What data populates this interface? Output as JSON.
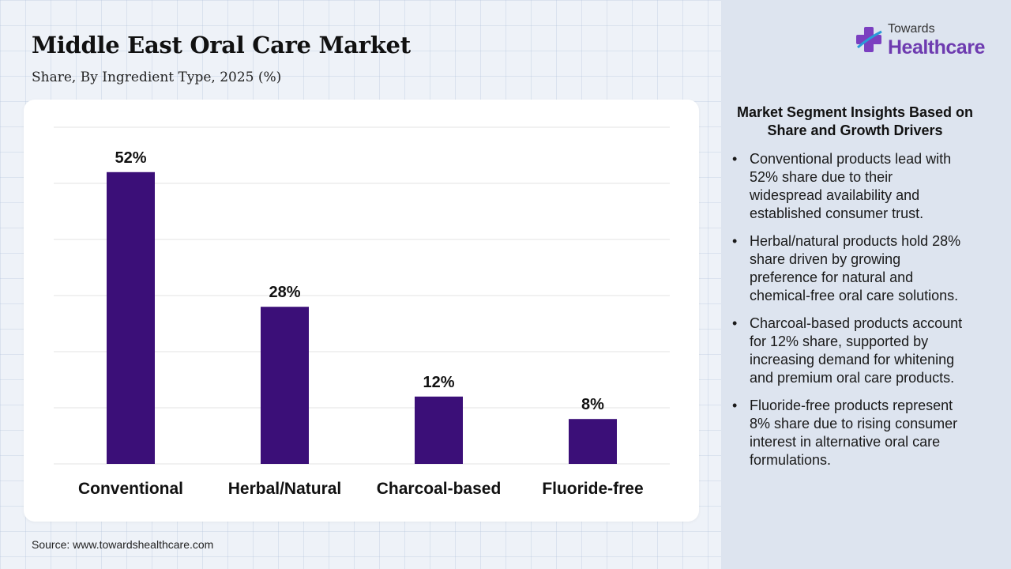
{
  "header": {
    "title": "Middle East Oral Care Market",
    "subtitle": "Share, By Ingredient Type, 2025 (%)"
  },
  "logo": {
    "top_text": "Towards",
    "main_text": "Healthcare",
    "colors": {
      "plus": "#7b3fc0",
      "accent": "#2a9bd8"
    }
  },
  "chart_data": {
    "type": "bar",
    "categories": [
      "Conventional",
      "Herbal/Natural",
      "Charcoal-based",
      "Fluoride-free"
    ],
    "values": [
      52,
      28,
      12,
      8
    ],
    "data_labels": [
      "52%",
      "28%",
      "12%",
      "8%"
    ],
    "title": "Middle East Oral Care Market",
    "subtitle": "Share, By Ingredient Type, 2025 (%)",
    "xlabel": "",
    "ylabel": "",
    "ylim": [
      0,
      60
    ],
    "grid": true,
    "bar_color": "#3b0f78"
  },
  "insights": {
    "heading": "Market Segment Insights Based on Share and Growth Drivers",
    "items": [
      "Conventional products lead with 52% share due to their widespread availability and established consumer trust.",
      "Herbal/natural products hold 28% share driven by growing preference for natural and chemical-free oral care solutions.",
      "Charcoal-based products account for 12% share, supported by increasing demand for whitening and premium oral care products.",
      "Fluoride-free products represent 8% share due to rising consumer interest in alternative oral care formulations."
    ]
  },
  "footer": {
    "source": "Source: www.towardshealthcare.com"
  }
}
